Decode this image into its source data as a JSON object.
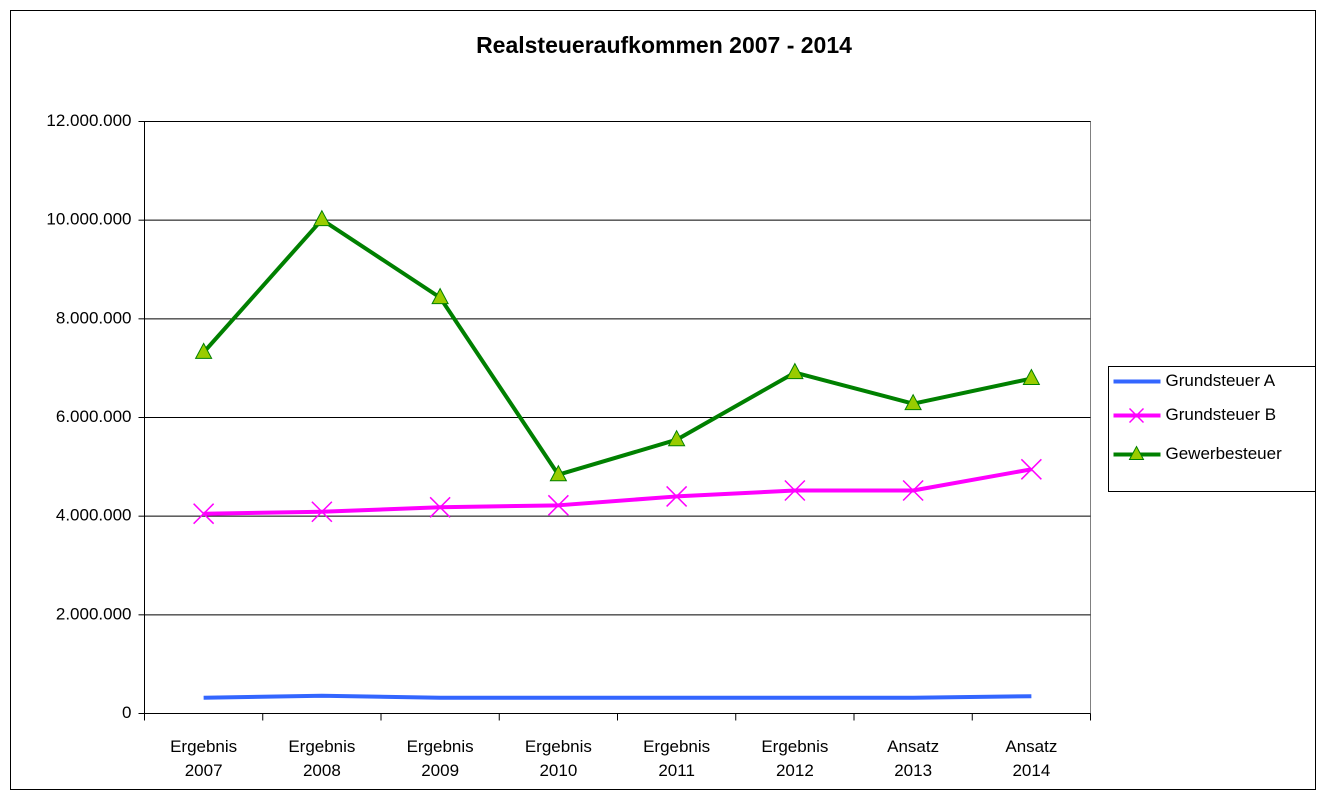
{
  "chart_data": {
    "type": "line",
    "title": "Realsteueraufkommen 2007 - 2014",
    "categories": [
      [
        "Ergebnis",
        "2007"
      ],
      [
        "Ergebnis",
        "2008"
      ],
      [
        "Ergebnis",
        "2009"
      ],
      [
        "Ergebnis",
        "2010"
      ],
      [
        "Ergebnis",
        "2011"
      ],
      [
        "Ergebnis",
        "2012"
      ],
      [
        "Ansatz",
        "2013"
      ],
      [
        "Ansatz",
        "2014"
      ]
    ],
    "series": [
      {
        "name": "Grundsteuer A",
        "color": "#3366ff",
        "marker": null,
        "values": [
          320000,
          360000,
          320000,
          320000,
          320000,
          320000,
          320000,
          350000
        ]
      },
      {
        "name": "Grundsteuer B",
        "color": "#ff00ff",
        "marker": "x",
        "values": [
          4050000,
          4090000,
          4180000,
          4220000,
          4400000,
          4520000,
          4520000,
          4950000
        ]
      },
      {
        "name": "Gewerbesteuer",
        "color": "#008000",
        "marker": "triangle",
        "marker_fill": "#99cc00",
        "values": [
          7320000,
          10010000,
          8430000,
          4840000,
          5550000,
          6910000,
          6280000,
          6790000
        ]
      }
    ],
    "ylim": [
      0,
      12000000
    ],
    "yticks": [
      0,
      {
        "value": 2000000,
        "label": "2.000.000"
      },
      {
        "value": 4000000,
        "label": "4.000.000"
      },
      {
        "value": 6000000,
        "label": "6.000.000"
      },
      {
        "value": 8000000,
        "label": "8.000.000"
      },
      {
        "value": 10000000,
        "label": "10.000.000"
      },
      {
        "value": 12000000,
        "label": "12.000.000"
      }
    ],
    "grid": true,
    "legend": "right"
  }
}
